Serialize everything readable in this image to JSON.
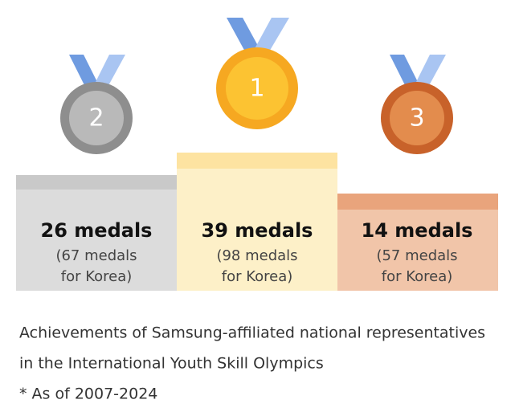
{
  "podium": [
    {
      "rank": "2",
      "medals": "26 medals",
      "korea_line1": "(67 medals",
      "korea_line2": "for Korea)"
    },
    {
      "rank": "1",
      "medals": "39 medals",
      "korea_line1": "(98 medals",
      "korea_line2": "for Korea)"
    },
    {
      "rank": "3",
      "medals": "14 medals",
      "korea_line1": "(57 medals",
      "korea_line2": "for Korea)"
    }
  ],
  "caption": {
    "lines": [
      "Achievements of Samsung-affiliated national representatives",
      "in the International Youth Skill Olympics"
    ],
    "note": "* As of 2007-2024"
  }
}
